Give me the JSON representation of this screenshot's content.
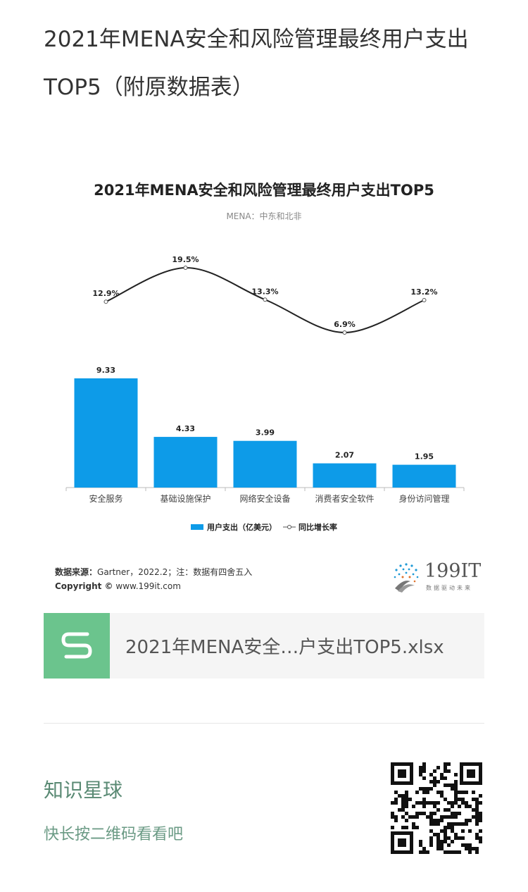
{
  "page": {
    "title": "2021年MENA安全和风险管理最终用户支出TOP5（附原数据表）"
  },
  "chart_data": {
    "type": "bar",
    "title": "2021年MENA安全和风险管理最终用户支出TOP5",
    "subtitle": "MENA：中东和北非",
    "categories": [
      "安全服务",
      "基础设施保护",
      "网络安全设备",
      "消费者安全软件",
      "身份访问管理"
    ],
    "series": [
      {
        "name": "用户支出（亿美元）",
        "type": "bar",
        "values": [
          9.33,
          4.33,
          3.99,
          2.07,
          1.95
        ],
        "labels": [
          "9.33",
          "4.33",
          "3.99",
          "2.07",
          "1.95"
        ],
        "color": "#0d9be8"
      },
      {
        "name": "同比增长率",
        "type": "line",
        "values": [
          12.9,
          19.5,
          13.3,
          6.9,
          13.2
        ],
        "labels": [
          "12.9%",
          "19.5%",
          "13.3%",
          "6.9%",
          "13.2%"
        ],
        "color": "#222222"
      }
    ],
    "legend_position": "bottom",
    "grid": false
  },
  "source": {
    "label": "数据来源：",
    "text": "Gartner，2022.2；注：数据有四舍五入",
    "copyright_label": "Copyright ©",
    "copyright_text": "www.199it.com"
  },
  "logo": {
    "name": "199IT",
    "tagline": "数据驱动未来",
    "icon": "dandelion-logo-icon"
  },
  "attachment": {
    "file_name": "2021年MENA安全…户支出TOP5.xlsx",
    "icon": "spreadsheet-icon",
    "icon_color": "#6bc48d"
  },
  "promo": {
    "title": "知识星球",
    "subtitle": "快长按二维码看看吧",
    "qr_icon": "qr-code-icon"
  }
}
